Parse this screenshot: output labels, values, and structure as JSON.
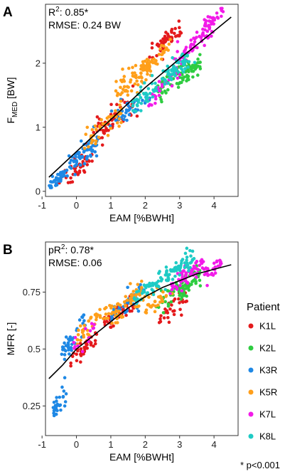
{
  "chart_data": [
    {
      "panel": "A",
      "type": "scatter",
      "xlabel": "EAM [%BWHt]",
      "ylabel_main": "F",
      "ylabel_sub": "MED",
      "ylabel_tail": " [BW]",
      "xlim": [
        -0.9,
        4.7
      ],
      "ylim": [
        -0.08,
        2.92
      ],
      "xticks": [
        -1,
        0,
        1,
        2,
        3,
        4
      ],
      "yticks": [
        0,
        1,
        2
      ],
      "annotation_lines": [
        {
          "pre": "R",
          "sup": "2",
          "post": ": 0.85*"
        },
        {
          "pre": "RMSE: 0.24 BW",
          "sup": "",
          "post": ""
        }
      ],
      "fit_line": {
        "x": [
          -0.8,
          0.0,
          1.0,
          2.0,
          3.0,
          4.0,
          4.5
        ],
        "y": [
          0.22,
          0.62,
          1.12,
          1.62,
          2.07,
          2.5,
          2.72
        ]
      },
      "series": [
        {
          "name": "K1L",
          "color": "#E41A1C",
          "center": [
            0.8,
            1.0
          ],
          "clusters": [
            [
              0.0,
              0.35,
              0.5,
              0.28,
              0.2,
              40
            ],
            [
              1.2,
              1.2,
              0.6,
              0.28,
              0.22,
              60
            ],
            [
              2.6,
              2.35,
              0.4,
              0.22,
              0.18,
              50
            ]
          ]
        },
        {
          "name": "K2L",
          "color": "#2ECC40",
          "center": [
            3.0,
            1.8
          ],
          "clusters": [
            [
              2.8,
              1.75,
              0.5,
              0.25,
              0.2,
              60
            ],
            [
              3.3,
              1.85,
              0.3,
              0.15,
              0.15,
              40
            ]
          ]
        },
        {
          "name": "K3R",
          "color": "#1E88E5",
          "center": [
            0.2,
            0.5
          ],
          "clusters": [
            [
              -0.5,
              0.2,
              0.25,
              0.12,
              0.1,
              40
            ],
            [
              0.2,
              0.6,
              0.4,
              0.22,
              0.2,
              60
            ],
            [
              1.6,
              1.3,
              0.5,
              0.2,
              0.18,
              40
            ]
          ]
        },
        {
          "name": "K5R",
          "color": "#FF9F1A",
          "center": [
            1.7,
            1.6
          ],
          "clusters": [
            [
              0.8,
              1.0,
              0.5,
              0.25,
              0.2,
              40
            ],
            [
              1.7,
              1.75,
              0.5,
              0.22,
              0.2,
              70
            ],
            [
              2.3,
              2.1,
              0.35,
              0.18,
              0.15,
              30
            ]
          ]
        },
        {
          "name": "K7L",
          "color": "#F21BE8",
          "center": [
            3.2,
            2.0
          ],
          "clusters": [
            [
              2.5,
              1.6,
              0.4,
              0.3,
              0.2,
              30
            ],
            [
              3.5,
              2.35,
              0.55,
              0.28,
              0.22,
              70
            ],
            [
              4.0,
              2.7,
              0.3,
              0.12,
              0.1,
              20
            ]
          ]
        },
        {
          "name": "K8L",
          "color": "#1ECBC5",
          "center": [
            2.5,
            1.7
          ],
          "clusters": [
            [
              2.0,
              1.5,
              0.4,
              0.2,
              0.18,
              40
            ],
            [
              2.9,
              1.9,
              0.4,
              0.2,
              0.18,
              60
            ]
          ]
        }
      ]
    },
    {
      "panel": "B",
      "type": "scatter",
      "xlabel": "EAM [%BWHt]",
      "ylabel_main": "MFR [-]",
      "ylabel_sub": "",
      "ylabel_tail": "",
      "xlim": [
        -0.9,
        4.7
      ],
      "ylim": [
        0.12,
        0.97
      ],
      "xticks": [
        -1,
        0,
        1,
        2,
        3,
        4
      ],
      "yticks": [
        0.25,
        0.5,
        0.75
      ],
      "annotation_lines": [
        {
          "pre": "pR",
          "sup": "2",
          "post": ": 0.78*"
        },
        {
          "pre": "RMSE: 0.06",
          "sup": "",
          "post": ""
        }
      ],
      "fit_line": {
        "x": [
          -0.8,
          -0.4,
          0.0,
          0.5,
          1.0,
          1.5,
          2.0,
          2.5,
          3.0,
          3.5,
          4.0,
          4.5
        ],
        "y": [
          0.37,
          0.43,
          0.5,
          0.56,
          0.62,
          0.68,
          0.73,
          0.77,
          0.8,
          0.83,
          0.85,
          0.87
        ]
      },
      "series": [
        {
          "name": "K1L",
          "color": "#E41A1C",
          "center": [
            1.2,
            0.62
          ],
          "clusters": [
            [
              0.2,
              0.5,
              0.4,
              0.06,
              0.05,
              40
            ],
            [
              1.3,
              0.66,
              0.5,
              0.06,
              0.05,
              50
            ],
            [
              2.8,
              0.68,
              0.4,
              0.05,
              0.05,
              30
            ]
          ]
        },
        {
          "name": "K2L",
          "color": "#2ECC40",
          "center": [
            3.0,
            0.8
          ],
          "clusters": [
            [
              2.8,
              0.75,
              0.5,
              0.06,
              0.05,
              50
            ],
            [
              3.3,
              0.78,
              0.3,
              0.05,
              0.05,
              40
            ]
          ]
        },
        {
          "name": "K3R",
          "color": "#1E88E5",
          "center": [
            0.0,
            0.45
          ],
          "clusters": [
            [
              -0.5,
              0.27,
              0.2,
              0.06,
              0.05,
              30
            ],
            [
              -0.1,
              0.55,
              0.35,
              0.08,
              0.07,
              40
            ],
            [
              1.5,
              0.7,
              0.5,
              0.06,
              0.05,
              50
            ]
          ]
        },
        {
          "name": "K5R",
          "color": "#FF9F1A",
          "center": [
            1.2,
            0.65
          ],
          "clusters": [
            [
              0.5,
              0.62,
              0.5,
              0.07,
              0.06,
              40
            ],
            [
              1.5,
              0.7,
              0.5,
              0.06,
              0.05,
              60
            ],
            [
              2.4,
              0.72,
              0.4,
              0.05,
              0.05,
              30
            ]
          ]
        },
        {
          "name": "K7L",
          "color": "#F21BE8",
          "center": [
            3.4,
            0.85
          ],
          "clusters": [
            [
              3.2,
              0.82,
              0.5,
              0.06,
              0.05,
              60
            ],
            [
              4.0,
              0.86,
              0.3,
              0.04,
              0.04,
              30
            ],
            [
              0.2,
              0.55,
              0.4,
              0.06,
              0.05,
              15
            ]
          ]
        },
        {
          "name": "K8L",
          "color": "#1ECBC5",
          "center": [
            2.6,
            0.82
          ],
          "clusters": [
            [
              2.2,
              0.78,
              0.5,
              0.06,
              0.05,
              50
            ],
            [
              3.0,
              0.86,
              0.4,
              0.05,
              0.05,
              50
            ]
          ]
        }
      ]
    }
  ],
  "legend": {
    "title": "Patient",
    "items": [
      {
        "label": "K1L",
        "color": "#E41A1C"
      },
      {
        "label": "K2L",
        "color": "#2ECC40"
      },
      {
        "label": "K3R",
        "color": "#1E88E5"
      },
      {
        "label": "K5R",
        "color": "#FF9F1A"
      },
      {
        "label": "K7L",
        "color": "#F21BE8"
      },
      {
        "label": "K8L",
        "color": "#1ECBC5"
      }
    ]
  },
  "footnote": "* p<0.001"
}
